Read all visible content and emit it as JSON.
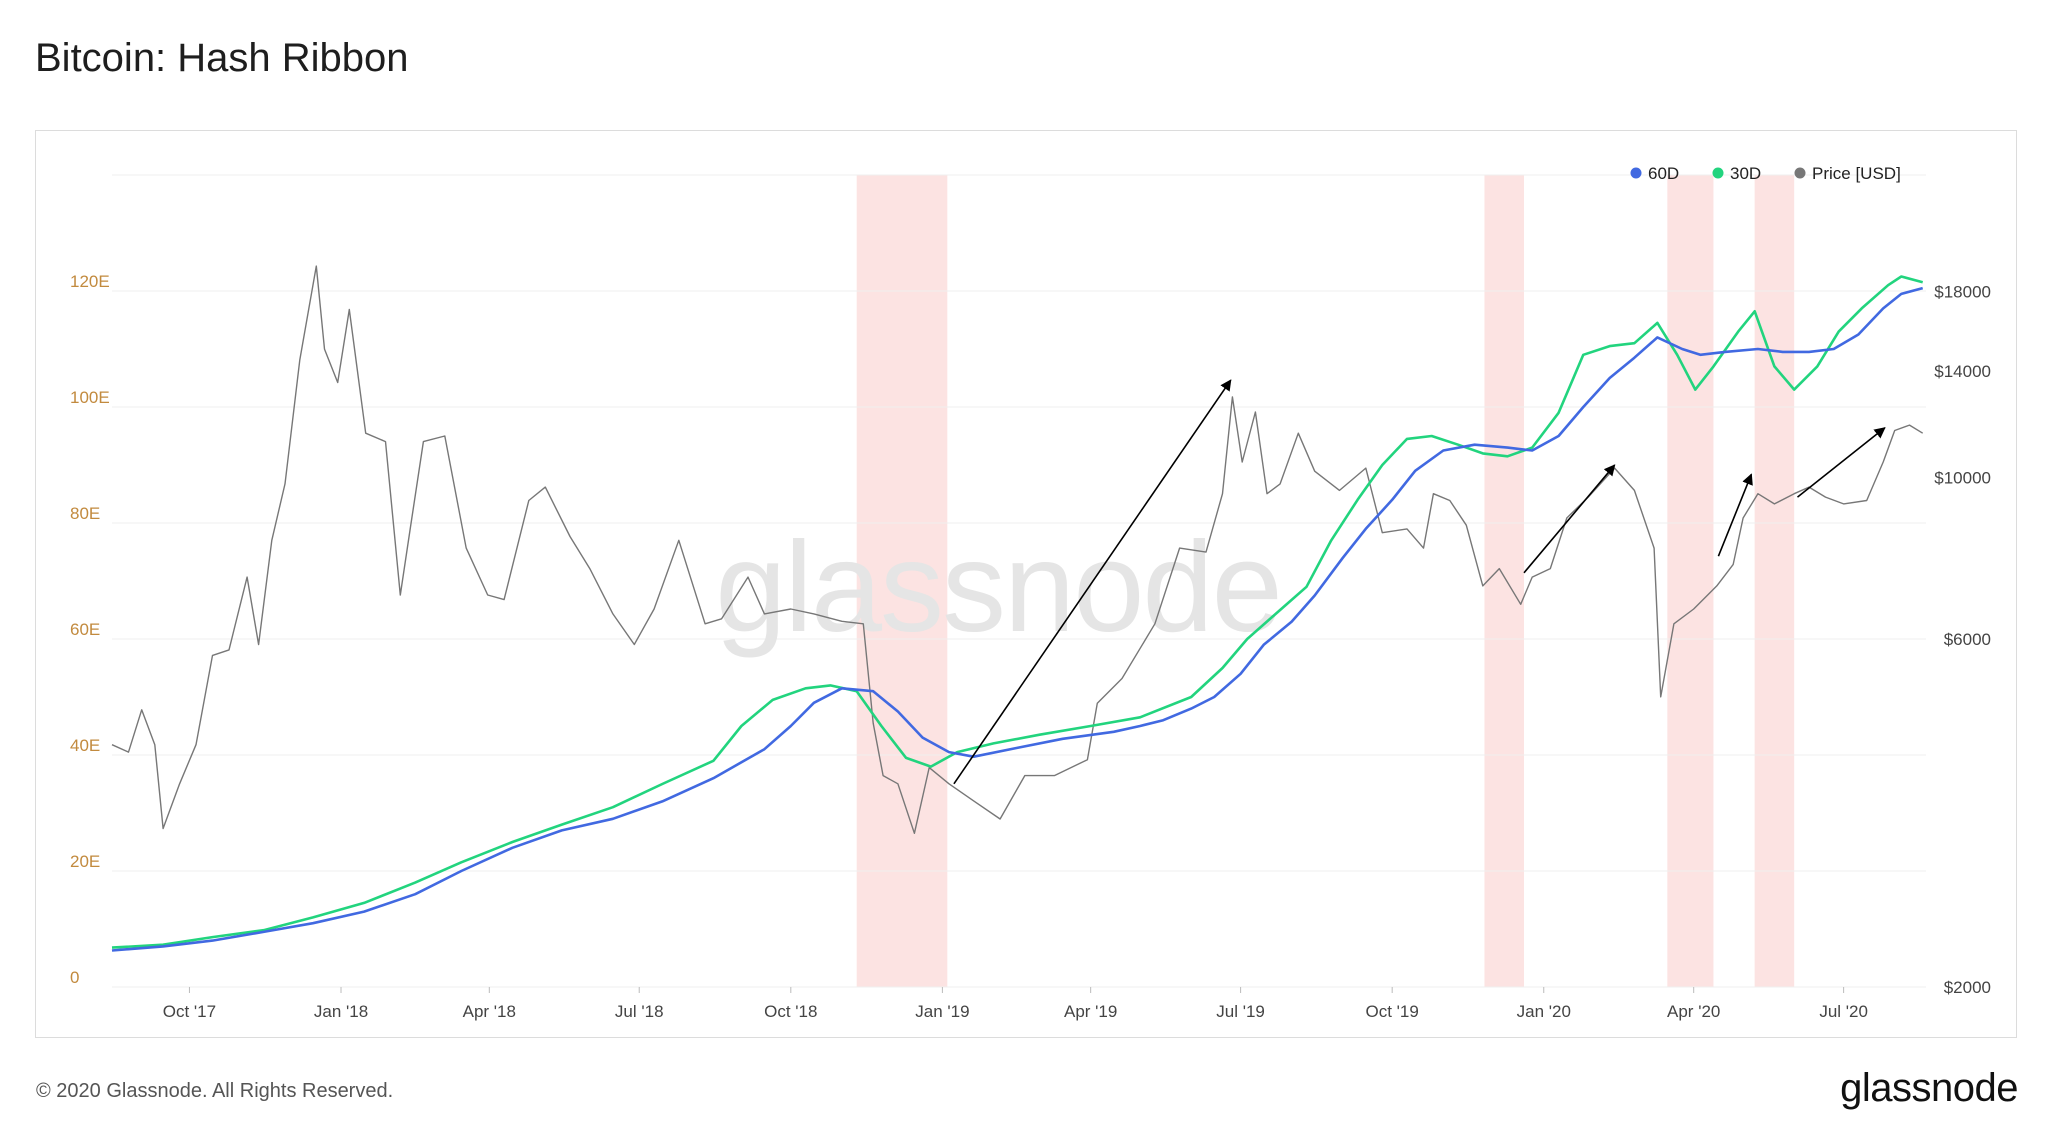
{
  "page": {
    "title": "Bitcoin: Hash Ribbon",
    "footer_copyright": "© 2020 Glassnode. All Rights Reserved.",
    "footer_brand": "glassnode",
    "watermark": "glassnode"
  },
  "colors": {
    "sma60": "#4169E1",
    "sma30": "#22D47E",
    "price": "#777777",
    "capitulation_band": "#FCE3E2",
    "left_axis_text": "#C28A3E",
    "arrow": "#000000"
  },
  "chart_data": {
    "type": "line",
    "title": "Bitcoin: Hash Ribbon",
    "x_ticks": [
      "Oct '17",
      "Jan '18",
      "Apr '18",
      "Jul '18",
      "Oct '18",
      "Jan '19",
      "Apr '19",
      "Jul '19",
      "Oct '19",
      "Jan '20",
      "Apr '20",
      "Jul '20"
    ],
    "x_tick_dates": [
      "2017-10-01",
      "2018-01-01",
      "2018-04-01",
      "2018-07-01",
      "2018-10-01",
      "2019-01-01",
      "2019-04-01",
      "2019-07-01",
      "2019-10-01",
      "2020-01-01",
      "2020-04-01",
      "2020-07-01"
    ],
    "xlim": [
      "2017-08-15",
      "2020-08-20"
    ],
    "left_axis": {
      "ticks": [
        "0",
        "20E",
        "40E",
        "60E",
        "80E",
        "100E",
        "120E"
      ],
      "values": [
        0,
        20,
        40,
        60,
        80,
        100,
        120
      ],
      "range": [
        0,
        140
      ]
    },
    "right_axis": {
      "scale": "log",
      "ticks": [
        "$2000",
        "$6000",
        "$10000",
        "$14000",
        "$18000"
      ],
      "values": [
        2000,
        6000,
        10000,
        14000,
        18000
      ],
      "range": [
        2000,
        26000
      ]
    },
    "legend": {
      "position": "top-right",
      "items": [
        "60D",
        "30D",
        "Price [USD]"
      ]
    },
    "capitulation_bands": [
      [
        "2018-11-10",
        "2019-01-04"
      ],
      [
        "2019-11-26",
        "2019-12-20"
      ],
      [
        "2020-03-16",
        "2020-04-13"
      ],
      [
        "2020-05-08",
        "2020-06-01"
      ]
    ],
    "arrows": [
      {
        "from": [
          "2019-01-08",
          3800
        ],
        "to": [
          "2019-06-25",
          13600
        ]
      },
      {
        "from": [
          "2019-12-20",
          7400
        ],
        "to": [
          "2020-02-13",
          10400
        ]
      },
      {
        "from": [
          "2020-04-16",
          7800
        ],
        "to": [
          "2020-05-06",
          10100
        ]
      },
      {
        "from": [
          "2020-06-03",
          9400
        ],
        "to": [
          "2020-07-26",
          11700
        ]
      }
    ],
    "series": [
      {
        "name": "60D",
        "axis": "left",
        "points": [
          [
            "2017-08-15",
            6.3
          ],
          [
            "2017-09-15",
            7
          ],
          [
            "2017-10-15",
            8
          ],
          [
            "2017-11-15",
            9.5
          ],
          [
            "2017-12-15",
            11
          ],
          [
            "2018-01-15",
            13
          ],
          [
            "2018-02-15",
            16
          ],
          [
            "2018-03-15",
            20
          ],
          [
            "2018-04-15",
            24
          ],
          [
            "2018-05-15",
            27
          ],
          [
            "2018-06-15",
            29
          ],
          [
            "2018-07-15",
            32
          ],
          [
            "2018-08-15",
            36
          ],
          [
            "2018-09-15",
            41
          ],
          [
            "2018-10-01",
            45
          ],
          [
            "2018-10-15",
            49
          ],
          [
            "2018-11-01",
            51.5
          ],
          [
            "2018-11-20",
            51
          ],
          [
            "2018-12-05",
            47.5
          ],
          [
            "2018-12-20",
            43
          ],
          [
            "2019-01-05",
            40.5
          ],
          [
            "2019-01-20",
            39.7
          ],
          [
            "2019-02-15",
            41.2
          ],
          [
            "2019-03-15",
            42.8
          ],
          [
            "2019-04-15",
            44
          ],
          [
            "2019-05-01",
            45
          ],
          [
            "2019-05-15",
            46
          ],
          [
            "2019-06-01",
            48
          ],
          [
            "2019-06-15",
            50
          ],
          [
            "2019-07-01",
            54
          ],
          [
            "2019-07-15",
            59
          ],
          [
            "2019-08-01",
            63
          ],
          [
            "2019-08-15",
            67.5
          ],
          [
            "2019-09-01",
            74
          ],
          [
            "2019-09-15",
            79
          ],
          [
            "2019-10-01",
            84
          ],
          [
            "2019-10-15",
            89
          ],
          [
            "2019-11-01",
            92.5
          ],
          [
            "2019-11-20",
            93.5
          ],
          [
            "2019-12-10",
            93
          ],
          [
            "2019-12-25",
            92.5
          ],
          [
            "2020-01-10",
            95
          ],
          [
            "2020-01-25",
            100
          ],
          [
            "2020-02-10",
            105
          ],
          [
            "2020-02-25",
            108.5
          ],
          [
            "2020-03-10",
            112
          ],
          [
            "2020-03-25",
            110
          ],
          [
            "2020-04-05",
            109
          ],
          [
            "2020-04-20",
            109.5
          ],
          [
            "2020-05-10",
            110
          ],
          [
            "2020-05-25",
            109.5
          ],
          [
            "2020-06-10",
            109.5
          ],
          [
            "2020-06-25",
            110
          ],
          [
            "2020-07-10",
            112.5
          ],
          [
            "2020-07-25",
            117
          ],
          [
            "2020-08-05",
            119.5
          ],
          [
            "2020-08-18",
            120.5
          ]
        ]
      },
      {
        "name": "30D",
        "axis": "left",
        "points": [
          [
            "2017-08-15",
            6.8
          ],
          [
            "2017-09-15",
            7.3
          ],
          [
            "2017-10-15",
            8.6
          ],
          [
            "2017-11-15",
            9.8
          ],
          [
            "2017-12-15",
            12
          ],
          [
            "2018-01-15",
            14.5
          ],
          [
            "2018-02-15",
            18
          ],
          [
            "2018-03-15",
            21.5
          ],
          [
            "2018-04-15",
            25
          ],
          [
            "2018-05-15",
            28
          ],
          [
            "2018-06-15",
            31
          ],
          [
            "2018-07-15",
            35
          ],
          [
            "2018-08-15",
            39
          ],
          [
            "2018-09-01",
            45
          ],
          [
            "2018-09-20",
            49.5
          ],
          [
            "2018-10-10",
            51.5
          ],
          [
            "2018-10-25",
            52
          ],
          [
            "2018-11-10",
            51
          ],
          [
            "2018-11-25",
            45
          ],
          [
            "2018-12-10",
            39.5
          ],
          [
            "2018-12-25",
            38
          ],
          [
            "2019-01-10",
            40.5
          ],
          [
            "2019-02-01",
            42
          ],
          [
            "2019-03-01",
            43.5
          ],
          [
            "2019-04-01",
            45
          ],
          [
            "2019-05-01",
            46.5
          ],
          [
            "2019-06-01",
            50
          ],
          [
            "2019-06-20",
            55
          ],
          [
            "2019-07-05",
            60
          ],
          [
            "2019-07-25",
            65
          ],
          [
            "2019-08-10",
            69
          ],
          [
            "2019-08-25",
            77
          ],
          [
            "2019-09-10",
            84
          ],
          [
            "2019-09-25",
            90
          ],
          [
            "2019-10-10",
            94.5
          ],
          [
            "2019-10-25",
            95
          ],
          [
            "2019-11-10",
            93.5
          ],
          [
            "2019-11-25",
            92
          ],
          [
            "2019-12-10",
            91.5
          ],
          [
            "2019-12-25",
            93
          ],
          [
            "2020-01-10",
            99
          ],
          [
            "2020-01-25",
            109
          ],
          [
            "2020-02-10",
            110.5
          ],
          [
            "2020-02-25",
            111
          ],
          [
            "2020-03-10",
            114.5
          ],
          [
            "2020-03-22",
            109
          ],
          [
            "2020-04-02",
            103
          ],
          [
            "2020-04-13",
            107
          ],
          [
            "2020-04-28",
            113
          ],
          [
            "2020-05-08",
            116.5
          ],
          [
            "2020-05-20",
            107
          ],
          [
            "2020-06-01",
            103
          ],
          [
            "2020-06-15",
            107
          ],
          [
            "2020-06-28",
            113
          ],
          [
            "2020-07-12",
            117
          ],
          [
            "2020-07-28",
            121
          ],
          [
            "2020-08-05",
            122.5
          ],
          [
            "2020-08-18",
            121.5
          ]
        ]
      },
      {
        "name": "Price [USD]",
        "axis": "right",
        "points": [
          [
            "2017-08-15",
            4300
          ],
          [
            "2017-08-25",
            4200
          ],
          [
            "2017-09-02",
            4800
          ],
          [
            "2017-09-10",
            4300
          ],
          [
            "2017-09-15",
            3300
          ],
          [
            "2017-09-25",
            3800
          ],
          [
            "2017-10-05",
            4300
          ],
          [
            "2017-10-15",
            5700
          ],
          [
            "2017-10-25",
            5800
          ],
          [
            "2017-11-05",
            7300
          ],
          [
            "2017-11-12",
            5900
          ],
          [
            "2017-11-20",
            8200
          ],
          [
            "2017-11-28",
            9800
          ],
          [
            "2017-12-07",
            14500
          ],
          [
            "2017-12-17",
            19500
          ],
          [
            "2017-12-22",
            15000
          ],
          [
            "2017-12-30",
            13500
          ],
          [
            "2018-01-06",
            17000
          ],
          [
            "2018-01-16",
            11500
          ],
          [
            "2018-01-28",
            11200
          ],
          [
            "2018-02-06",
            6900
          ],
          [
            "2018-02-12",
            8500
          ],
          [
            "2018-02-20",
            11200
          ],
          [
            "2018-03-05",
            11400
          ],
          [
            "2018-03-18",
            8000
          ],
          [
            "2018-03-31",
            6900
          ],
          [
            "2018-04-10",
            6800
          ],
          [
            "2018-04-25",
            9300
          ],
          [
            "2018-05-05",
            9700
          ],
          [
            "2018-05-20",
            8300
          ],
          [
            "2018-06-01",
            7500
          ],
          [
            "2018-06-15",
            6500
          ],
          [
            "2018-06-28",
            5900
          ],
          [
            "2018-07-10",
            6600
          ],
          [
            "2018-07-25",
            8200
          ],
          [
            "2018-08-10",
            6300
          ],
          [
            "2018-08-20",
            6400
          ],
          [
            "2018-09-05",
            7300
          ],
          [
            "2018-09-15",
            6500
          ],
          [
            "2018-10-01",
            6600
          ],
          [
            "2018-10-15",
            6500
          ],
          [
            "2018-11-01",
            6350
          ],
          [
            "2018-11-14",
            6300
          ],
          [
            "2018-11-20",
            4600
          ],
          [
            "2018-11-26",
            3900
          ],
          [
            "2018-12-05",
            3800
          ],
          [
            "2018-12-15",
            3250
          ],
          [
            "2018-12-24",
            4000
          ],
          [
            "2019-01-05",
            3800
          ],
          [
            "2019-01-20",
            3600
          ],
          [
            "2019-02-05",
            3400
          ],
          [
            "2019-02-20",
            3900
          ],
          [
            "2019-03-10",
            3900
          ],
          [
            "2019-03-30",
            4100
          ],
          [
            "2019-04-05",
            4900
          ],
          [
            "2019-04-20",
            5300
          ],
          [
            "2019-05-10",
            6300
          ],
          [
            "2019-05-25",
            8000
          ],
          [
            "2019-06-10",
            7900
          ],
          [
            "2019-06-20",
            9500
          ],
          [
            "2019-06-26",
            12900
          ],
          [
            "2019-07-02",
            10500
          ],
          [
            "2019-07-10",
            12300
          ],
          [
            "2019-07-17",
            9500
          ],
          [
            "2019-07-25",
            9800
          ],
          [
            "2019-08-05",
            11500
          ],
          [
            "2019-08-15",
            10200
          ],
          [
            "2019-08-30",
            9600
          ],
          [
            "2019-09-15",
            10300
          ],
          [
            "2019-09-25",
            8400
          ],
          [
            "2019-10-10",
            8500
          ],
          [
            "2019-10-20",
            8000
          ],
          [
            "2019-10-26",
            9500
          ],
          [
            "2019-11-05",
            9300
          ],
          [
            "2019-11-15",
            8600
          ],
          [
            "2019-11-25",
            7100
          ],
          [
            "2019-12-05",
            7500
          ],
          [
            "2019-12-18",
            6700
          ],
          [
            "2019-12-25",
            7300
          ],
          [
            "2020-01-05",
            7500
          ],
          [
            "2020-01-15",
            8800
          ],
          [
            "2020-01-28",
            9400
          ],
          [
            "2020-02-13",
            10300
          ],
          [
            "2020-02-25",
            9600
          ],
          [
            "2020-03-08",
            8000
          ],
          [
            "2020-03-12",
            5000
          ],
          [
            "2020-03-20",
            6300
          ],
          [
            "2020-04-01",
            6600
          ],
          [
            "2020-04-15",
            7100
          ],
          [
            "2020-04-25",
            7600
          ],
          [
            "2020-05-01",
            8800
          ],
          [
            "2020-05-10",
            9500
          ],
          [
            "2020-05-20",
            9200
          ],
          [
            "2020-06-01",
            9500
          ],
          [
            "2020-06-10",
            9700
          ],
          [
            "2020-06-20",
            9400
          ],
          [
            "2020-07-01",
            9200
          ],
          [
            "2020-07-15",
            9300
          ],
          [
            "2020-07-25",
            10500
          ],
          [
            "2020-08-01",
            11600
          ],
          [
            "2020-08-10",
            11800
          ],
          [
            "2020-08-18",
            11500
          ]
        ]
      }
    ]
  }
}
